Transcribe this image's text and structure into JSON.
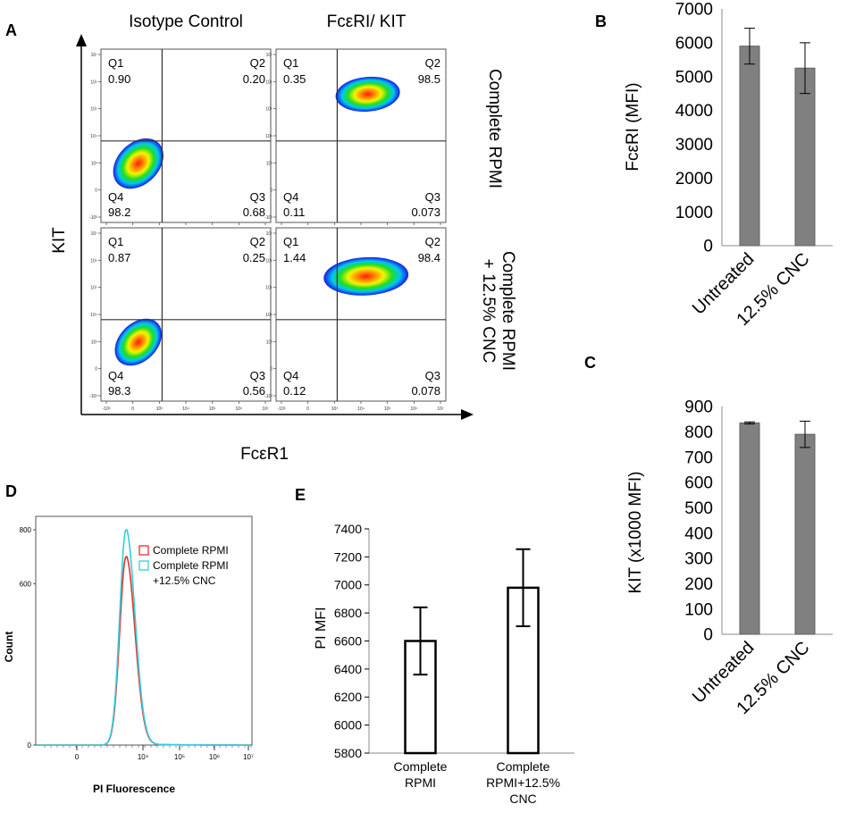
{
  "panel_labels": {
    "a": "A",
    "b": "B",
    "c": "C",
    "d": "D",
    "e": "E"
  },
  "colors": {
    "bar_gray": "#808080",
    "series_red": "#e8302a",
    "series_cyan": "#2fd0e0"
  },
  "chart_data": [
    {
      "panel": "A",
      "type": "scatter",
      "subtype": "flow-cytometry-quadrant-plots",
      "col_titles": [
        "Isotype Control",
        "FcεRI/  KIT"
      ],
      "row_titles": [
        [
          "Complete RPMI"
        ],
        [
          "Complete RPMI",
          "+ 12.5% CNC"
        ]
      ],
      "ylabel": "KIT",
      "xlabel": "FcεR1",
      "tick_labels": [
        "-10³",
        "0",
        "10³",
        "10⁴",
        "10⁵",
        "10⁶",
        "10⁷"
      ],
      "quadrant_labels": [
        "Q1",
        "Q2",
        "Q3",
        "Q4"
      ],
      "plots": [
        {
          "row": 0,
          "col": 0,
          "q1": "0.90",
          "q2": "0.20",
          "q3": "0.68",
          "q4": "98.2"
        },
        {
          "row": 0,
          "col": 1,
          "q1": "0.35",
          "q2": "98.5",
          "q3": "0.073",
          "q4": "0.11"
        },
        {
          "row": 1,
          "col": 0,
          "q1": "0.87",
          "q2": "0.25",
          "q3": "0.56",
          "q4": "98.3"
        },
        {
          "row": 1,
          "col": 1,
          "q1": "1.44",
          "q2": "98.4",
          "q3": "0.078",
          "q4": "0.12"
        }
      ]
    },
    {
      "panel": "B",
      "type": "bar",
      "categories": [
        "Untreated",
        "12.5% CNC"
      ],
      "values": [
        5900,
        5250
      ],
      "errors": [
        530,
        750
      ],
      "ylabel": "FcεRI (MFI)",
      "ylim": [
        0,
        7000
      ],
      "yticks": [
        0,
        1000,
        2000,
        3000,
        4000,
        5000,
        6000,
        7000
      ]
    },
    {
      "panel": "C",
      "type": "bar",
      "categories": [
        "Untreated",
        "12.5% CNC"
      ],
      "values": [
        835,
        790
      ],
      "errors": [
        4,
        52
      ],
      "ylabel": "KIT (x1000 MFI)",
      "ylim": [
        0,
        900
      ],
      "yticks": [
        0,
        100,
        200,
        300,
        400,
        500,
        600,
        700,
        800,
        900
      ]
    },
    {
      "panel": "D",
      "type": "line",
      "subtype": "histogram",
      "xlabel": "PI Fluorescence",
      "ylabel": "Count",
      "ylim": [
        0,
        850
      ],
      "ytick_labels": [
        "0",
        "600",
        "800"
      ],
      "xtick_labels": [
        "0",
        "10⁴",
        "10⁵",
        "10⁶",
        "10⁷"
      ],
      "series": [
        {
          "name": "Complete RPMI",
          "peak": 700
        },
        {
          "name": "Complete RPMI",
          "name_line2": "+12.5% CNC",
          "peak": 800
        }
      ]
    },
    {
      "panel": "E",
      "type": "bar",
      "categories": [
        [
          "Complete",
          "RPMI"
        ],
        [
          "Complete",
          "RPMI+12.5%",
          "CNC"
        ]
      ],
      "values": [
        6600,
        6980
      ],
      "errors": [
        240,
        275
      ],
      "ylabel": "PI MFI",
      "ylim": [
        5800,
        7400
      ],
      "yticks": [
        5800,
        6000,
        6200,
        6400,
        6600,
        6800,
        7000,
        7200,
        7400
      ]
    }
  ]
}
